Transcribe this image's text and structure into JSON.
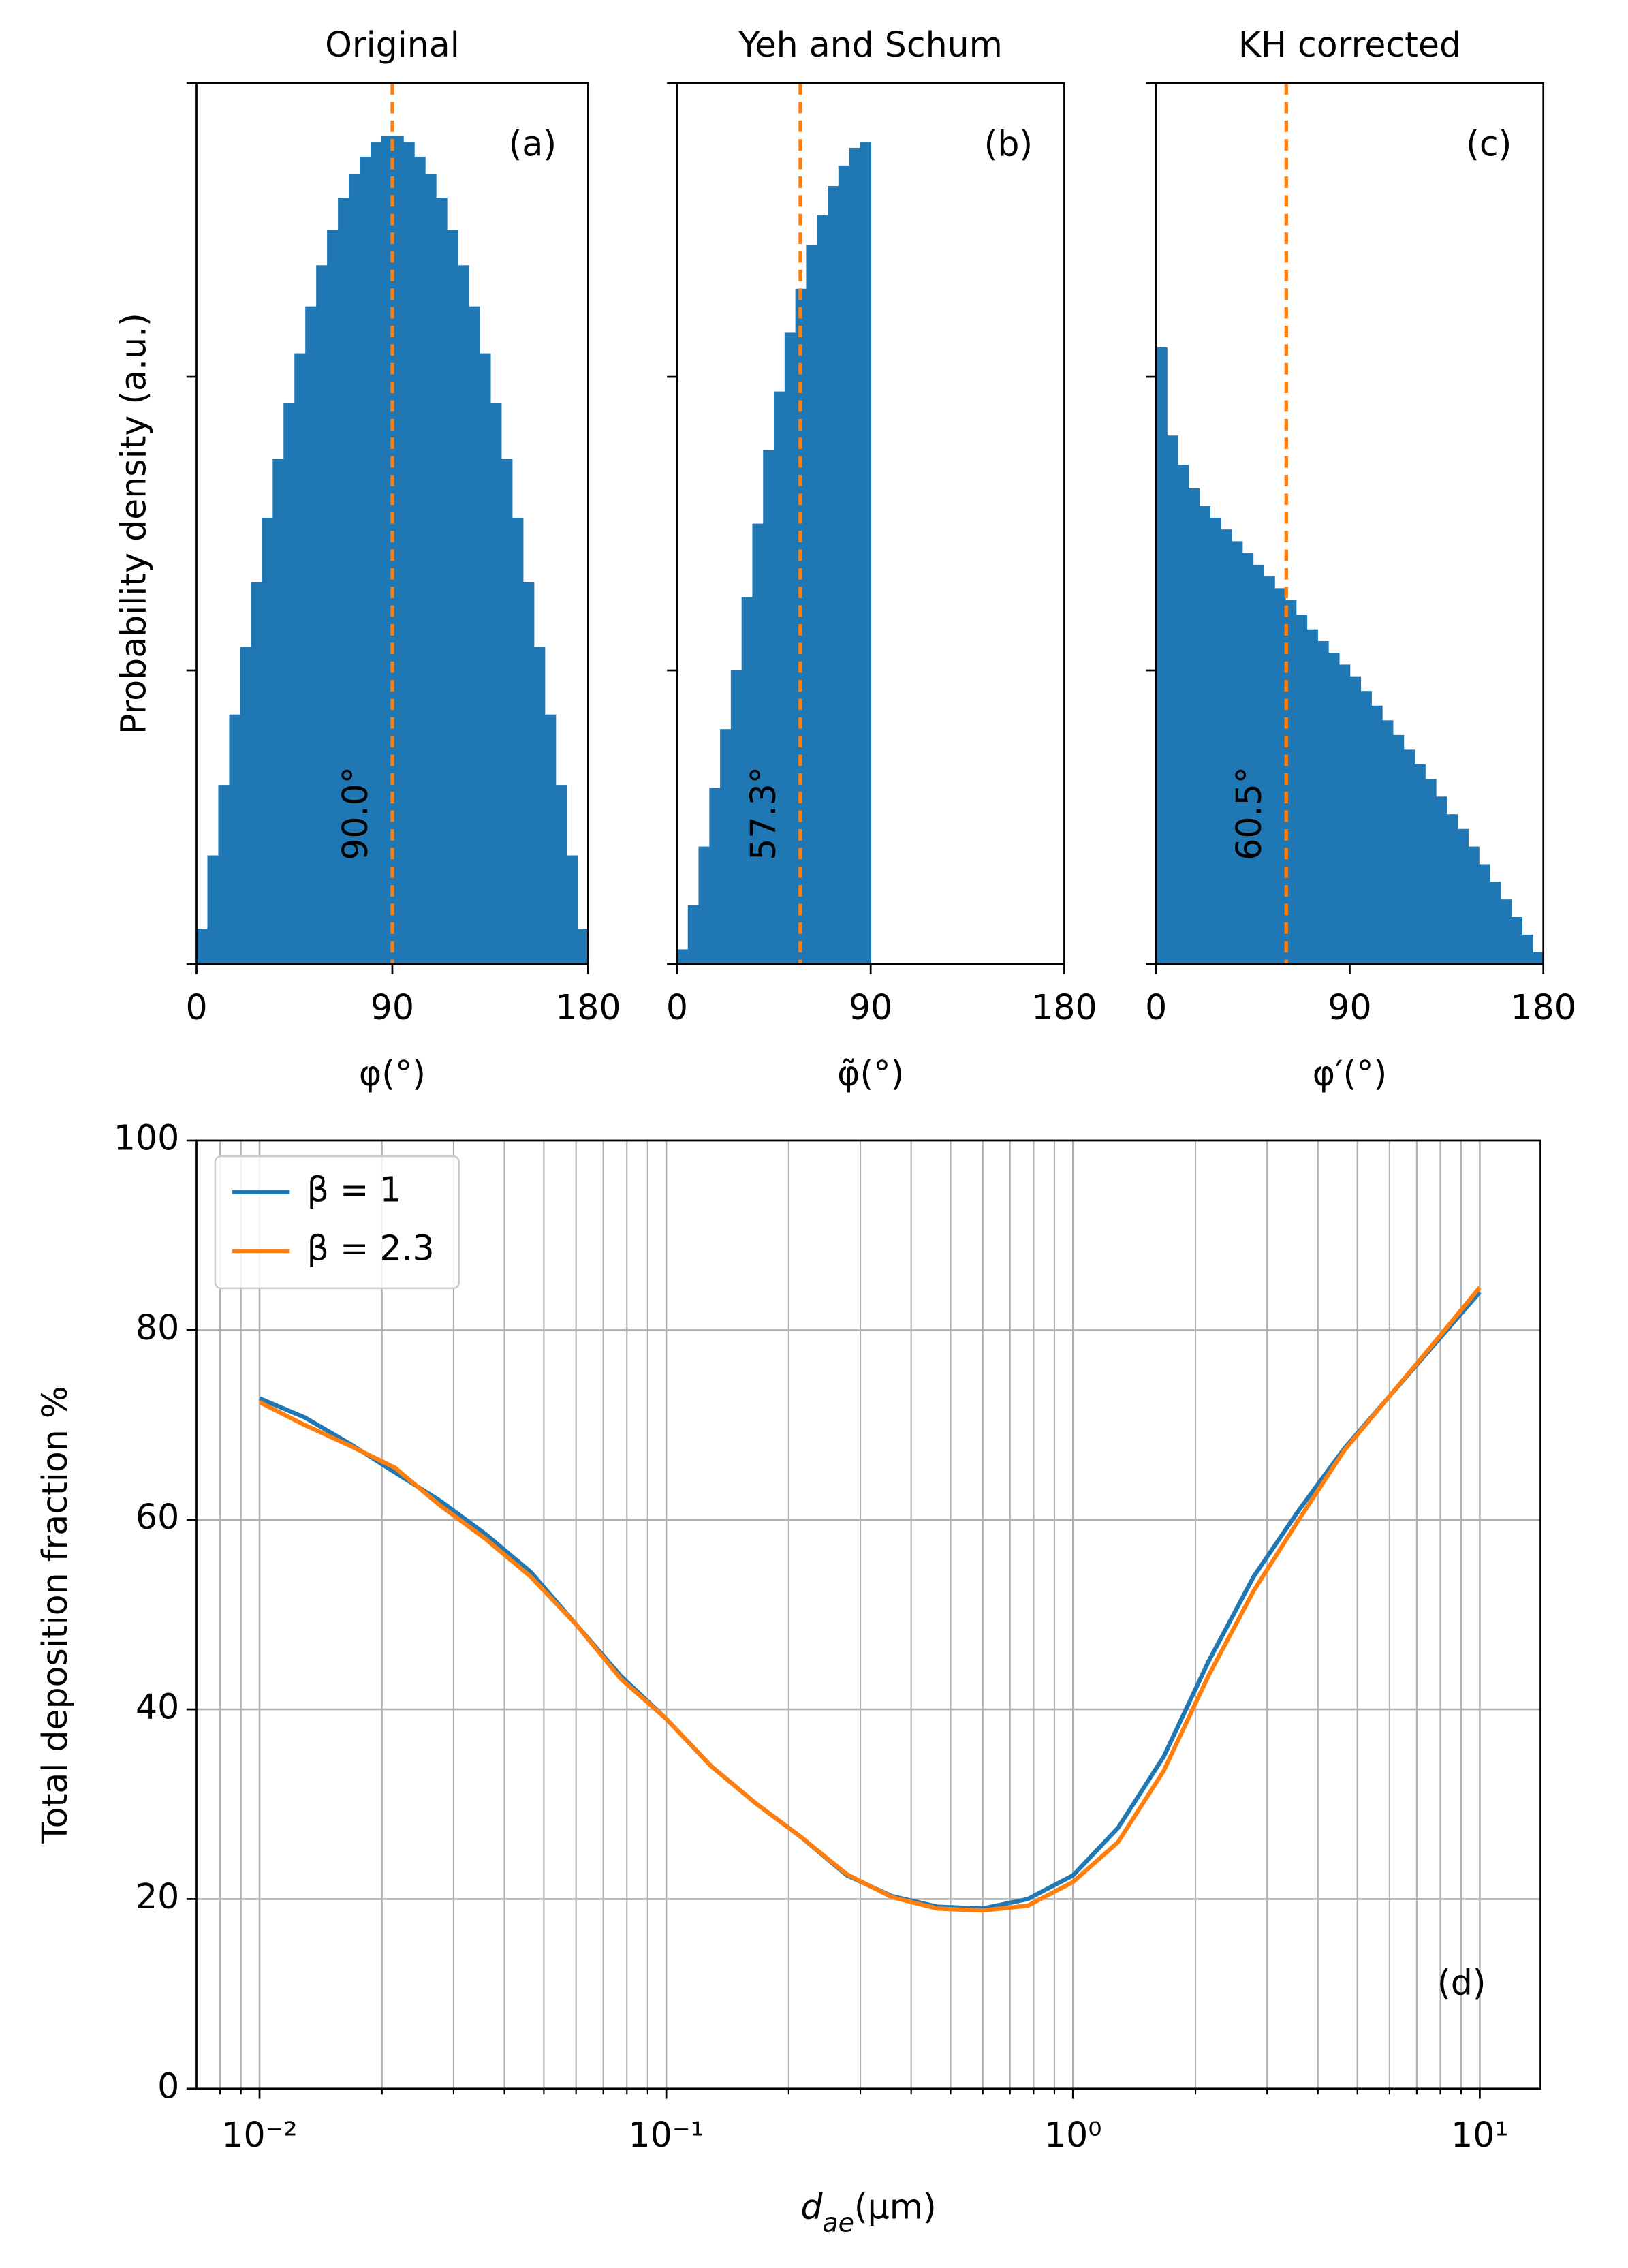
{
  "chart_data": [
    {
      "type": "histogram",
      "title": "Original",
      "annotation": "(a)",
      "ylabel": "Probability density (a.u.)",
      "xlabel": [
        "φ(°)"
      ],
      "bins": [
        0,
        5,
        10,
        15,
        20,
        25,
        30,
        35,
        40,
        45,
        50,
        55,
        60,
        65,
        70,
        75,
        80,
        85,
        90,
        95,
        100,
        105,
        110,
        115,
        120,
        125,
        130,
        135,
        140,
        145,
        150,
        155,
        160,
        165,
        170,
        175,
        180
      ],
      "values": [
        0.12,
        0.37,
        0.61,
        0.85,
        1.08,
        1.3,
        1.52,
        1.72,
        1.91,
        2.08,
        2.24,
        2.38,
        2.5,
        2.61,
        2.69,
        2.75,
        2.8,
        2.82,
        2.82,
        2.8,
        2.75,
        2.69,
        2.61,
        2.5,
        2.38,
        2.24,
        2.08,
        1.91,
        1.72,
        1.52,
        1.3,
        1.08,
        0.85,
        0.61,
        0.37,
        0.12
      ],
      "color": "#1f77b4",
      "xlim": [
        0,
        180
      ],
      "xticks": [
        0,
        90,
        180
      ],
      "ylim": [
        0,
        3
      ],
      "yticks": [
        0,
        1,
        2,
        3
      ],
      "ytick_labels": false,
      "vline": 90,
      "vline_label": "90.0°",
      "vline_color": "#ff7f0e"
    },
    {
      "type": "histogram",
      "title": "Yeh and Schum",
      "annotation": "(b)",
      "xlabel": [
        "φ̃(°)"
      ],
      "bins": [
        0,
        5,
        10,
        15,
        20,
        25,
        30,
        35,
        40,
        45,
        50,
        55,
        60,
        65,
        70,
        75,
        80,
        85,
        90
      ],
      "values": [
        0.05,
        0.2,
        0.4,
        0.6,
        0.8,
        1.0,
        1.25,
        1.5,
        1.75,
        1.95,
        2.15,
        2.3,
        2.45,
        2.55,
        2.65,
        2.72,
        2.78,
        2.8
      ],
      "color": "#1f77b4",
      "xlim": [
        0,
        180
      ],
      "xticks": [
        0,
        90,
        180
      ],
      "ylim": [
        0,
        3
      ],
      "yticks": [
        0,
        1,
        2,
        3
      ],
      "ytick_labels": false,
      "vline": 57.3,
      "vline_label": "57.3°",
      "vline_color": "#ff7f0e"
    },
    {
      "type": "histogram",
      "title": "KH corrected",
      "annotation": "(c)",
      "xlabel": [
        "φ′(°)"
      ],
      "bins": [
        0,
        5,
        10,
        15,
        20,
        25,
        30,
        35,
        40,
        45,
        50,
        55,
        60,
        65,
        70,
        75,
        80,
        85,
        90,
        95,
        100,
        105,
        110,
        115,
        120,
        125,
        130,
        135,
        140,
        145,
        150,
        155,
        160,
        165,
        170,
        175,
        180
      ],
      "values": [
        2.1,
        1.8,
        1.7,
        1.62,
        1.56,
        1.52,
        1.48,
        1.44,
        1.4,
        1.36,
        1.32,
        1.28,
        1.24,
        1.19,
        1.14,
        1.1,
        1.06,
        1.02,
        0.98,
        0.93,
        0.88,
        0.83,
        0.78,
        0.73,
        0.68,
        0.63,
        0.57,
        0.51,
        0.46,
        0.4,
        0.34,
        0.28,
        0.22,
        0.16,
        0.1,
        0.04
      ],
      "color": "#1f77b4",
      "xlim": [
        0,
        180
      ],
      "xticks": [
        0,
        90,
        180
      ],
      "ylim": [
        0,
        3
      ],
      "yticks": [
        0,
        1,
        2,
        3
      ],
      "ytick_labels": false,
      "vline": 60.5,
      "vline_label": "60.5°",
      "vline_color": "#ff7f0e"
    },
    {
      "type": "line",
      "annotation": "(d)",
      "ylabel": "Total deposition fraction %",
      "xlabel": [
        "d",
        "ae",
        "(μm)"
      ],
      "x": [
        0.01,
        0.0129,
        0.0167,
        0.0215,
        0.0278,
        0.0359,
        0.0464,
        0.0599,
        0.0774,
        0.1,
        0.129,
        0.167,
        0.215,
        0.278,
        0.359,
        0.464,
        0.599,
        0.774,
        1.0,
        1.29,
        1.67,
        2.15,
        2.78,
        3.59,
        4.64,
        5.99,
        7.74,
        10
      ],
      "series": [
        {
          "name": "β = 1",
          "color": "#1f77b4",
          "values": [
            72.8,
            70.8,
            68,
            65,
            62,
            58.5,
            54.5,
            49,
            43.5,
            39,
            34,
            30,
            26.5,
            22.5,
            20.3,
            19.2,
            19,
            20,
            22.5,
            27.5,
            35,
            45,
            54,
            61,
            67.5,
            73,
            78.5,
            84
          ]
        },
        {
          "name": "β = 2.3",
          "color": "#ff7f0e",
          "values": [
            72.4,
            70,
            67.8,
            65.5,
            61.5,
            58,
            54,
            49,
            43.2,
            39,
            34,
            30,
            26.5,
            22.6,
            20.2,
            19,
            18.8,
            19.3,
            21.8,
            26,
            33.5,
            43.5,
            52.5,
            60,
            67.3,
            73,
            78.7,
            84.5
          ]
        }
      ],
      "xscale": "log",
      "xlim": [
        0.007,
        14.1
      ],
      "xticks": [
        {
          "value": 0.01,
          "label": "10⁻²"
        },
        {
          "value": 0.1,
          "label": "10⁻¹"
        },
        {
          "value": 1,
          "label": "10⁰"
        },
        {
          "value": 10,
          "label": "10¹"
        }
      ],
      "xminorticks": [
        0.008,
        0.009,
        0.02,
        0.03,
        0.04,
        0.05,
        0.06,
        0.07,
        0.08,
        0.09,
        0.2,
        0.3,
        0.4,
        0.5,
        0.6,
        0.7,
        0.8,
        0.9,
        2,
        3,
        4,
        5,
        6,
        7,
        8,
        9
      ],
      "ylim": [
        0,
        100
      ],
      "yticks": [
        0,
        20,
        40,
        60,
        80,
        100
      ],
      "grid": true,
      "legend": "upper left"
    }
  ]
}
